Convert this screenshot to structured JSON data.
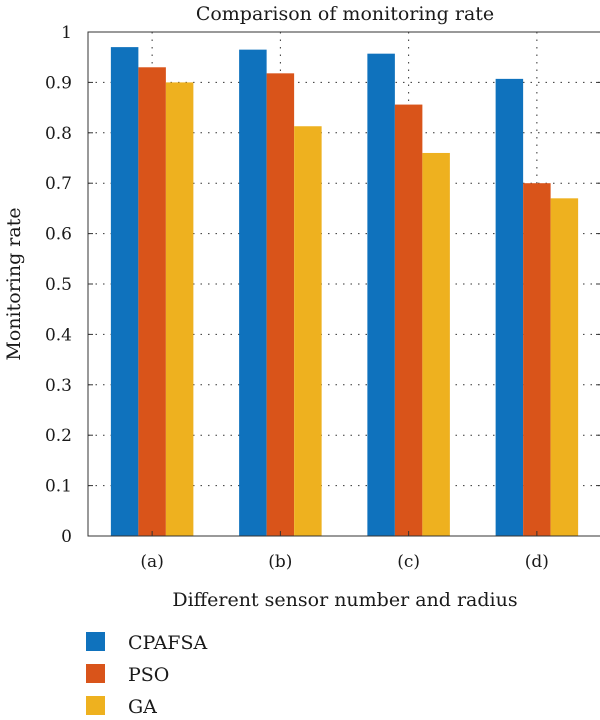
{
  "chart_data": {
    "type": "bar",
    "title": "Comparison of monitoring rate",
    "xlabel": "Different sensor number and radius",
    "ylabel": "Monitoring rate",
    "categories": [
      "(a)",
      "(b)",
      "(c)",
      "(d)"
    ],
    "series": [
      {
        "name": "CPAFSA",
        "color": "#0F72BD",
        "values": [
          0.97,
          0.965,
          0.957,
          0.907
        ]
      },
      {
        "name": "PSO",
        "color": "#D9541A",
        "values": [
          0.93,
          0.918,
          0.856,
          0.7
        ]
      },
      {
        "name": "GA",
        "color": "#EEB11F",
        "values": [
          0.9,
          0.813,
          0.76,
          0.67
        ]
      }
    ],
    "ylim": [
      0,
      1
    ],
    "yticks": [
      0,
      0.1,
      0.2,
      0.3,
      0.4,
      0.5,
      0.6,
      0.7,
      0.8,
      0.9,
      1
    ],
    "ytick_labels": [
      "0",
      "0.1",
      "0.2",
      "0.3",
      "0.4",
      "0.5",
      "0.6",
      "0.7",
      "0.8",
      "0.9",
      "1"
    ],
    "grid": "dotted",
    "legend": "bottom-left"
  }
}
